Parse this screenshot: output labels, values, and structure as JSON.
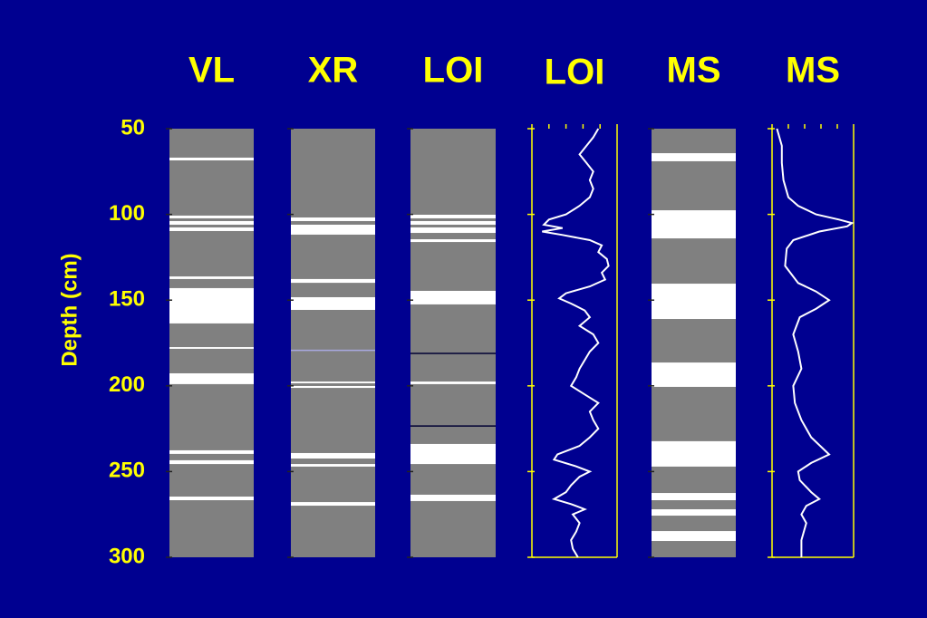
{
  "chart_data": [
    {
      "type": "bands",
      "title": "VL",
      "ylim": [
        50,
        300
      ],
      "ylabel": "Depth (cm)",
      "yticks": [
        50,
        100,
        150,
        200,
        250,
        300
      ],
      "color": "#808080",
      "band_color": "#ffffff",
      "bands": [
        [
          66.9,
          68.5
        ],
        [
          100.7,
          102.3
        ],
        [
          103.9,
          106
        ],
        [
          107.6,
          109.7
        ],
        [
          136.2,
          137.7
        ],
        [
          143,
          163.6
        ],
        [
          177.4,
          178.4
        ],
        [
          192.7,
          199
        ],
        [
          237.6,
          239.7
        ],
        [
          243.4,
          245.6
        ],
        [
          264.6,
          266.7
        ]
      ]
    },
    {
      "type": "bands",
      "title": "XR",
      "ylim": [
        50,
        300
      ],
      "yticks": [
        50,
        100,
        150,
        200,
        250,
        300
      ],
      "color": "#808080",
      "band_color": "#ffffff",
      "bands": [
        [
          101.8,
          103.9
        ],
        [
          106,
          111.8
        ],
        [
          137.7,
          139.9
        ],
        [
          148.3,
          155.7
        ],
        [
          197.5,
          198.5
        ],
        [
          200.1,
          201.2
        ],
        [
          239.2,
          242.4
        ],
        [
          245.6,
          247.1
        ],
        [
          267.8,
          269.9
        ]
      ],
      "lines": [
        179.3
      ],
      "line_color": "#a8a8e0"
    },
    {
      "type": "bands",
      "title": "LOI",
      "ylim": [
        50,
        300
      ],
      "yticks": [
        50,
        100,
        150,
        200,
        250,
        300
      ],
      "color": "#808080",
      "band_color": "#ffffff",
      "bands": [
        [
          100.2,
          102.3
        ],
        [
          103.9,
          106
        ],
        [
          107.6,
          110.8
        ],
        [
          114.5,
          116.1
        ],
        [
          144.6,
          152.5
        ],
        [
          197.5,
          199
        ],
        [
          233.9,
          245.6
        ],
        [
          263.5,
          267.2
        ]
      ],
      "lines": [
        181.1,
        223.4
      ],
      "line_color": "#000033"
    },
    {
      "type": "line",
      "title": "LOI",
      "ylim": [
        50,
        300
      ],
      "yticks": [
        50,
        100,
        150,
        200,
        250,
        300
      ],
      "xlim": [
        0,
        5
      ],
      "xticks": [
        0,
        1,
        2,
        3,
        4,
        5
      ],
      "color": "#ffffff",
      "depths": [
        50,
        55,
        60,
        65,
        70,
        75,
        80,
        85,
        90,
        95,
        100,
        103,
        106,
        108,
        110,
        112,
        115,
        118,
        122,
        126,
        130,
        134,
        138,
        142,
        146,
        149,
        152,
        156,
        160,
        165,
        170,
        175,
        180,
        185,
        190,
        195,
        200,
        205,
        210,
        215,
        220,
        225,
        230,
        235,
        240,
        243,
        247,
        250,
        253,
        258,
        262,
        266,
        269,
        272,
        275,
        280,
        285,
        290,
        295,
        300
      ],
      "values": [
        3.9,
        3.6,
        3.2,
        2.8,
        3.2,
        3.6,
        3.4,
        3.6,
        3.4,
        2.8,
        2.0,
        1.0,
        0.7,
        1.8,
        0.6,
        1.8,
        3.4,
        4.1,
        3.9,
        4.4,
        4.5,
        4.1,
        4.3,
        3.4,
        2.0,
        1.6,
        2.3,
        3.1,
        3.4,
        2.8,
        3.6,
        3.9,
        3.4,
        3.1,
        2.8,
        2.6,
        2.3,
        3.1,
        3.9,
        3.4,
        3.6,
        3.9,
        3.4,
        2.8,
        1.5,
        1.3,
        2.6,
        3.4,
        2.8,
        2.3,
        2.0,
        1.3,
        2.3,
        3.1,
        2.4,
        2.8,
        2.6,
        2.3,
        2.4,
        2.7
      ]
    },
    {
      "type": "bands",
      "title": "MS",
      "ylim": [
        50,
        300
      ],
      "yticks": [
        50,
        100,
        150,
        200,
        250,
        300
      ],
      "color": "#808080",
      "band_color": "#ffffff",
      "bands": [
        [
          64.3,
          69
        ],
        [
          97.6,
          114
        ],
        [
          140.4,
          161
        ],
        [
          186.4,
          200.6
        ],
        [
          232.3,
          247.1
        ],
        [
          262.5,
          266.7
        ],
        [
          272,
          275.7
        ],
        [
          284.7,
          290.5
        ]
      ]
    },
    {
      "type": "line",
      "title": "MS",
      "ylim": [
        50,
        300
      ],
      "yticks": [
        50,
        100,
        150,
        200,
        250,
        300
      ],
      "xlim": [
        0,
        5
      ],
      "xticks": [
        0,
        1,
        2,
        3,
        4,
        5
      ],
      "color": "#ffffff",
      "depths": [
        50,
        60,
        70,
        80,
        90,
        95,
        100,
        103,
        105,
        107,
        110,
        115,
        120,
        130,
        140,
        145,
        150,
        155,
        160,
        170,
        180,
        190,
        200,
        210,
        220,
        230,
        240,
        245,
        250,
        255,
        262,
        266,
        270,
        275,
        280,
        290,
        300
      ],
      "values": [
        0.3,
        0.6,
        0.6,
        0.7,
        1.0,
        1.6,
        2.7,
        4.1,
        4.9,
        4.6,
        2.9,
        1.3,
        0.9,
        0.8,
        1.6,
        2.7,
        3.5,
        2.7,
        1.7,
        1.3,
        1.6,
        1.8,
        1.3,
        1.4,
        1.8,
        2.4,
        3.5,
        2.4,
        1.6,
        1.7,
        2.4,
        2.9,
        2.1,
        1.8,
        2.1,
        1.8,
        1.8
      ]
    }
  ]
}
